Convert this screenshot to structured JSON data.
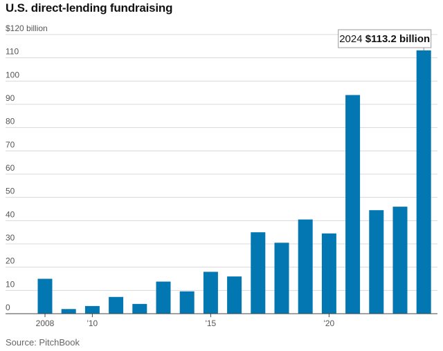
{
  "title": "U.S. direct-lending fundraising",
  "source": "Source: PitchBook",
  "colors": {
    "bar": "#0377B1",
    "grid": "#d8d8d8"
  },
  "chart_data": {
    "type": "bar",
    "title": "U.S. direct-lending fundraising",
    "ylabel": "$120 billion",
    "ylim": [
      0,
      120
    ],
    "yticks": [
      0,
      10,
      20,
      30,
      40,
      50,
      60,
      70,
      80,
      90,
      100,
      110,
      120
    ],
    "ytick_labels": [
      "0",
      "10",
      "20",
      "30",
      "40",
      "50",
      "60",
      "70",
      "80",
      "90",
      "100",
      "110",
      "$120 billion"
    ],
    "grid": true,
    "categories": [
      "2008",
      "2009",
      "2010",
      "2011",
      "2012",
      "2013",
      "2014",
      "2015",
      "2016",
      "2017",
      "2018",
      "2019",
      "2020",
      "2021",
      "2022",
      "2023",
      "2024"
    ],
    "x_tick_labels": [
      {
        "year": "2008",
        "label": "2008"
      },
      {
        "year": "2010",
        "label": "'10"
      },
      {
        "year": "2015",
        "label": "'15"
      },
      {
        "year": "2020",
        "label": "'20"
      }
    ],
    "values": [
      15,
      2,
      3.3,
      7.2,
      4.2,
      13.8,
      9.6,
      18,
      16,
      35,
      30.5,
      40.5,
      34.5,
      94,
      44.5,
      46,
      113.2
    ],
    "annotation": {
      "year": "2024",
      "label_year": "2024",
      "label_value": "$113.2 billion"
    }
  }
}
